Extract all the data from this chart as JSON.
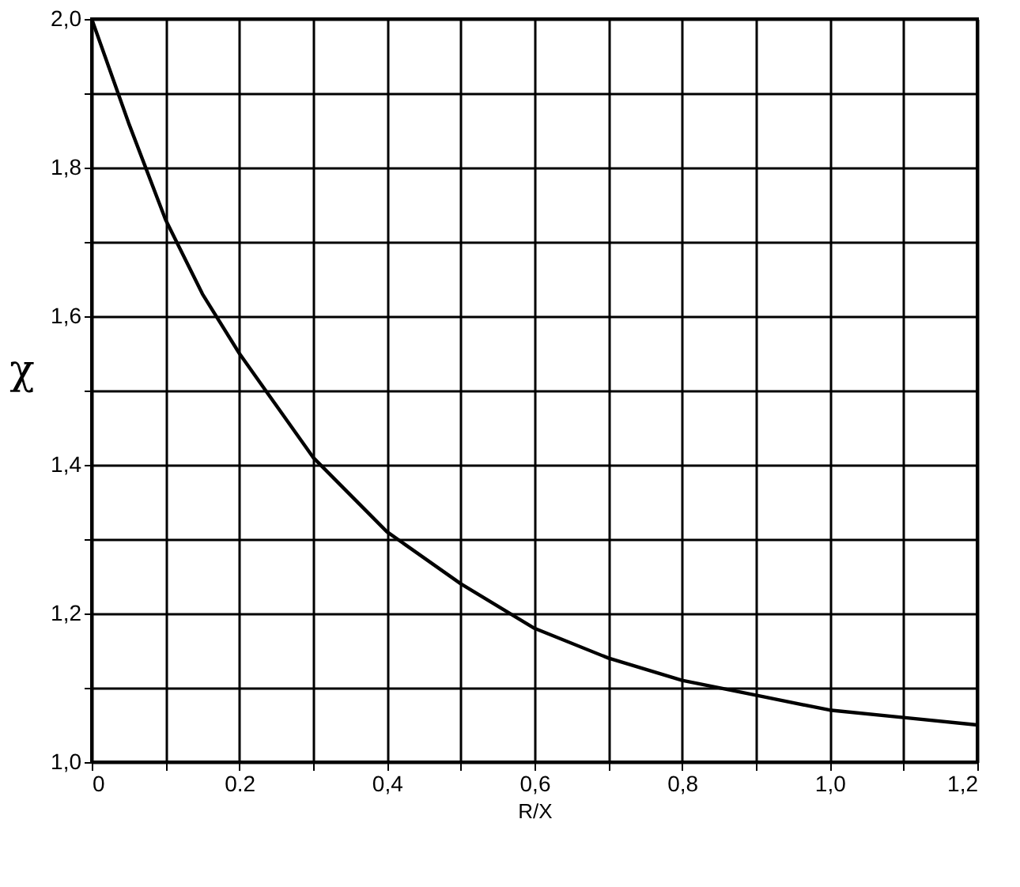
{
  "chart_data": {
    "type": "line",
    "xlabel": "R/X",
    "ylabel": "χ",
    "x": [
      0,
      0.05,
      0.1,
      0.15,
      0.2,
      0.25,
      0.3,
      0.35,
      0.4,
      0.5,
      0.6,
      0.7,
      0.8,
      0.9,
      1.0,
      1.1,
      1.2
    ],
    "series": [
      {
        "color": "#000000",
        "values": [
          2.0,
          1.86,
          1.73,
          1.63,
          1.55,
          1.48,
          1.41,
          1.36,
          1.31,
          1.24,
          1.18,
          1.14,
          1.11,
          1.09,
          1.07,
          1.06,
          1.05
        ]
      }
    ],
    "xlim": [
      0,
      1.2
    ],
    "ylim": [
      1.0,
      2.0
    ],
    "xticks": [
      0,
      {
        "value": 0.1,
        "label": null
      },
      {
        "value": 0.2,
        "label": "0.2"
      },
      {
        "value": 0.3,
        "label": null
      },
      {
        "value": 0.4,
        "label": "0,4"
      },
      {
        "value": 0.5,
        "label": null
      },
      {
        "value": 0.6,
        "label": "0,6"
      },
      {
        "value": 0.7,
        "label": null
      },
      {
        "value": 0.8,
        "label": "0,8"
      },
      {
        "value": 0.9,
        "label": null
      },
      {
        "value": 1.0,
        "label": "1,0"
      },
      {
        "value": 1.1,
        "label": null
      },
      {
        "value": 1.2,
        "label": "1,2"
      }
    ],
    "yticks": [
      {
        "value": 1.0,
        "label": "1,0"
      },
      {
        "value": 1.1,
        "label": null
      },
      {
        "value": 1.2,
        "label": "1,2"
      },
      {
        "value": 1.3,
        "label": null
      },
      {
        "value": 1.4,
        "label": "1,4"
      },
      {
        "value": 1.5,
        "label": null
      },
      {
        "value": 1.6,
        "label": "1,6"
      },
      {
        "value": 1.7,
        "label": null
      },
      {
        "value": 1.8,
        "label": "1,8"
      },
      {
        "value": 1.9,
        "label": null
      },
      {
        "value": 2.0,
        "label": "2,0"
      }
    ],
    "grid": true,
    "marker": "none",
    "line_style": "solid"
  }
}
